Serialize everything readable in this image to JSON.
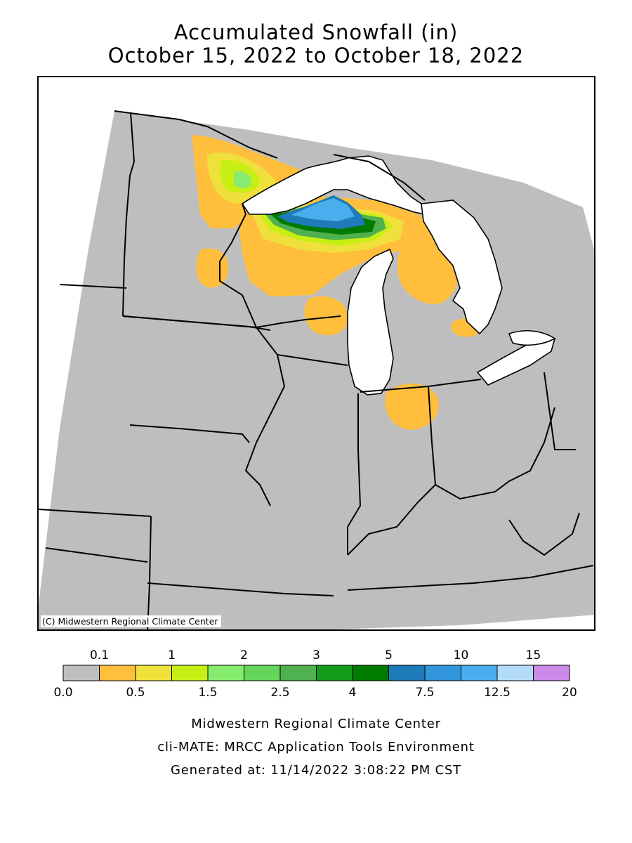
{
  "title": {
    "line1": "Accumulated Snowfall (in)",
    "line2": "October 15, 2022 to October 18, 2022"
  },
  "map": {
    "copyright": "(C) Midwestern Regional Climate Center",
    "background_fill": "#bebebe",
    "water_fill": "#ffffff",
    "border_color": "#000000"
  },
  "legend": {
    "upper_labels": [
      "0.1",
      "1",
      "2",
      "3",
      "5",
      "10",
      "15"
    ],
    "lower_labels": [
      "0.0",
      "0.5",
      "1.5",
      "2.5",
      "4",
      "7.5",
      "12.5",
      "20"
    ],
    "bins": [
      {
        "min": 0.0,
        "max": 0.1,
        "color": "#bebebe"
      },
      {
        "min": 0.1,
        "max": 0.5,
        "color": "#ffbf3c"
      },
      {
        "min": 0.5,
        "max": 1,
        "color": "#f0e03c"
      },
      {
        "min": 1,
        "max": 1.5,
        "color": "#c8ef14"
      },
      {
        "min": 1.5,
        "max": 2,
        "color": "#86ec6e"
      },
      {
        "min": 2,
        "max": 2.5,
        "color": "#63d65a"
      },
      {
        "min": 2.5,
        "max": 3,
        "color": "#4fb050"
      },
      {
        "min": 3,
        "max": 4,
        "color": "#139c1a"
      },
      {
        "min": 4,
        "max": 5,
        "color": "#007b00"
      },
      {
        "min": 5,
        "max": 7.5,
        "color": "#1e7ab9"
      },
      {
        "min": 7.5,
        "max": 10,
        "color": "#3197da"
      },
      {
        "min": 10,
        "max": 12.5,
        "color": "#4aaeee"
      },
      {
        "min": 12.5,
        "max": 15,
        "color": "#b4dcfa"
      },
      {
        "min": 15,
        "max": 20,
        "color": "#cc8ae8"
      }
    ]
  },
  "credits": {
    "line1": "Midwestern Regional Climate Center",
    "line2": "cli-MATE: MRCC Application Tools Environment",
    "line3": "Generated at: 11/14/2022 3:08:22 PM CST"
  }
}
